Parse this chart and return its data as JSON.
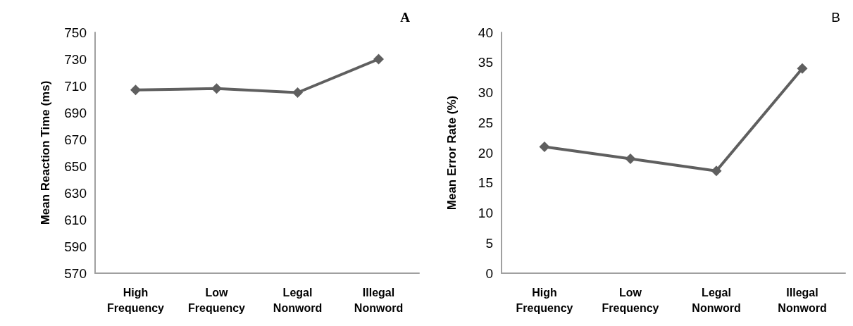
{
  "chart_data": [
    {
      "type": "line",
      "title": "A",
      "ylabel": "Mean Reaction Time (ms)",
      "categories": [
        "High Frequency",
        "Low Frequency",
        "Legal Nonword",
        "Illegal Nonword"
      ],
      "series": [
        {
          "color": "#5f5f5f",
          "values": [
            707,
            708,
            705,
            730
          ]
        }
      ],
      "ylim": [
        570,
        750
      ],
      "yticks": [
        570,
        590,
        610,
        630,
        650,
        670,
        690,
        710,
        730,
        750
      ],
      "grid": false,
      "marker": "diamond",
      "line_style": "solid"
    },
    {
      "type": "line",
      "title": "B",
      "ylabel": "Mean Error Rate (%)",
      "categories": [
        "High Frequency",
        "Low Frequency",
        "Legal Nonword",
        "Illegal Nonword"
      ],
      "series": [
        {
          "color": "#5f5f5f",
          "values": [
            21,
            19,
            17,
            34
          ]
        }
      ],
      "ylim": [
        0,
        40
      ],
      "yticks": [
        0,
        5,
        10,
        15,
        20,
        25,
        30,
        35,
        40
      ],
      "grid": false,
      "marker": "diamond",
      "line_style": "solid"
    }
  ]
}
